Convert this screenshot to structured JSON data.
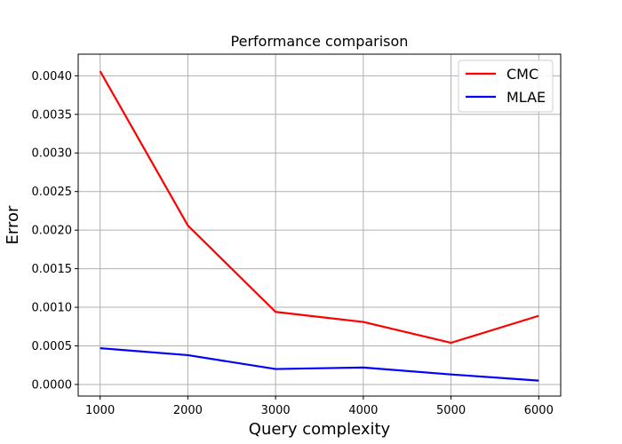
{
  "chart_data": {
    "type": "line",
    "title": "Performance comparison",
    "xlabel": "Query complexity",
    "ylabel": "Error",
    "x": [
      1000,
      2000,
      3000,
      4000,
      5000,
      6000
    ],
    "x_ticks": [
      "1000",
      "2000",
      "3000",
      "4000",
      "5000",
      "6000"
    ],
    "y_ticks": [
      "0.0000",
      "0.0005",
      "0.0010",
      "0.0015",
      "0.0020",
      "0.0025",
      "0.0030",
      "0.0035",
      "0.0040"
    ],
    "xlim": [
      750,
      6250
    ],
    "ylim": [
      -0.00015,
      0.00428
    ],
    "grid": true,
    "legend_position": "top-right",
    "series": [
      {
        "name": "CMC",
        "color": "#ff0000",
        "values": [
          0.00406,
          0.00206,
          0.00094,
          0.00081,
          0.00054,
          0.00089
        ]
      },
      {
        "name": "MLAE",
        "color": "#0000ff",
        "values": [
          0.00047,
          0.00038,
          0.0002,
          0.00022,
          0.00013,
          5e-05
        ]
      }
    ]
  }
}
